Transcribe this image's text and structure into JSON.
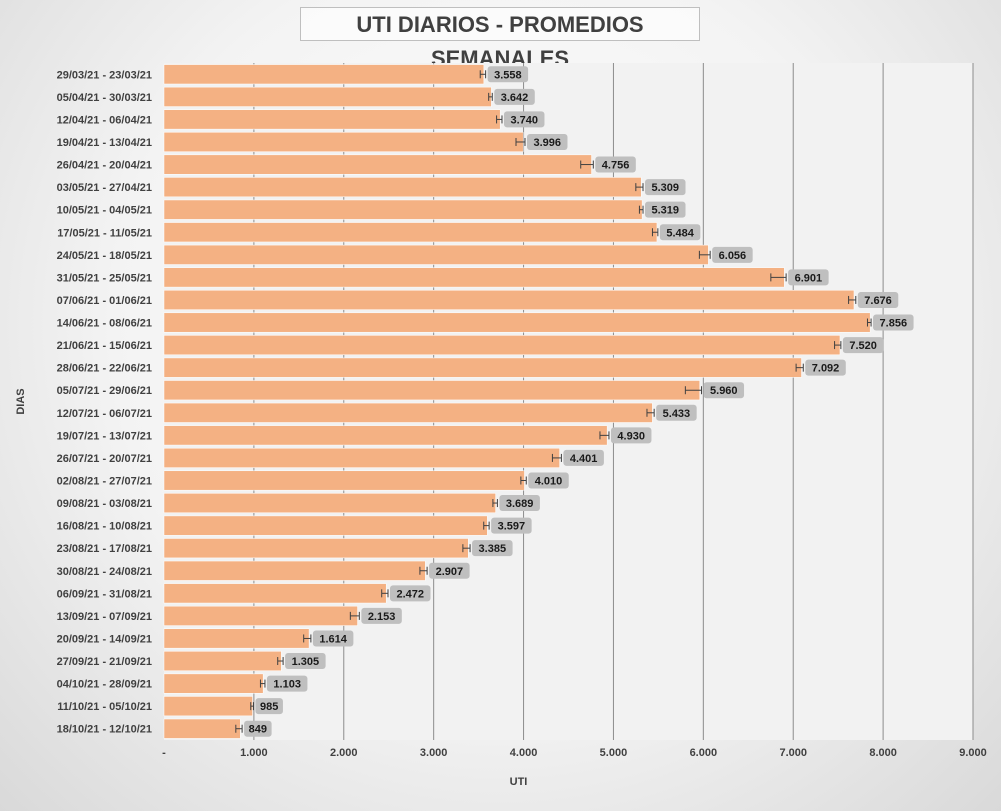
{
  "colors": {
    "bar": "#F4B183",
    "bar_stroke": "#ffffff",
    "plot_bg": "#F2F2F2",
    "gridline": "#8c8c8c",
    "label_bg": "#BFBFBF",
    "error_bar": "#404040"
  },
  "chart_data": {
    "type": "bar",
    "orientation": "horizontal",
    "title": "UTI DIARIOS - PROMEDIOS SEMANALES",
    "xlabel": "UTI",
    "ylabel": "DIAS",
    "xlim": [
      0,
      9000
    ],
    "grid": true,
    "legend": "none",
    "error_bars": true,
    "x_tick_labels": [
      "-",
      "1.000",
      "2.000",
      "3.000",
      "4.000",
      "5.000",
      "6.000",
      "7.000",
      "8.000",
      "9.000"
    ],
    "categories": [
      "29/03/21 - 23/03/21",
      "05/04/21 - 30/03/21",
      "12/04/21 - 06/04/21",
      "19/04/21 - 13/04/21",
      "26/04/21 - 20/04/21",
      "03/05/21 - 27/04/21",
      "10/05/21 - 04/05/21",
      "17/05/21 - 11/05/21",
      "24/05/21 - 18/05/21",
      "31/05/21 - 25/05/21",
      "07/06/21 - 01/06/21",
      "14/06/21 - 08/06/21",
      "21/06/21 - 15/06/21",
      "28/06/21 - 22/06/21",
      "05/07/21 - 29/06/21",
      "12/07/21 - 06/07/21",
      "19/07/21 - 13/07/21",
      "26/07/21 - 20/07/21",
      "02/08/21 - 27/07/21",
      "09/08/21 - 03/08/21",
      "16/08/21 - 10/08/21",
      "23/08/21 - 17/08/21",
      "30/08/21 - 24/08/21",
      "06/09/21 - 31/08/21",
      "13/09/21 - 07/09/21",
      "20/09/21 - 14/09/21",
      "27/09/21 - 21/09/21",
      "04/10/21 - 28/09/21",
      "11/10/21 - 05/10/21",
      "18/10/21 - 12/10/21"
    ],
    "values": [
      3558,
      3642,
      3740,
      3996,
      4756,
      5309,
      5319,
      5484,
      6056,
      6901,
      7676,
      7856,
      7520,
      7092,
      5960,
      5433,
      4930,
      4401,
      4010,
      3689,
      3597,
      3385,
      2907,
      2472,
      2153,
      1614,
      1305,
      1103,
      985,
      849
    ],
    "value_labels": [
      "3.558",
      "3.642",
      "3.740",
      "3.996",
      "4.756",
      "5.309",
      "5.319",
      "5.484",
      "6.056",
      "6.901",
      "7.676",
      "7.856",
      "7.520",
      "7.092",
      "5.960",
      "5.433",
      "4.930",
      "4.401",
      "4.010",
      "3.689",
      "3.597",
      "3.385",
      "2.907",
      "2.472",
      "2.153",
      "1.614",
      "1.305",
      "1.103",
      "985",
      "849"
    ],
    "error_minus": [
      40,
      30,
      40,
      80,
      120,
      60,
      30,
      50,
      100,
      150,
      60,
      30,
      60,
      60,
      160,
      60,
      80,
      80,
      40,
      30,
      40,
      60,
      60,
      50,
      80,
      60,
      40,
      30,
      20,
      50
    ],
    "error_plus": [
      20,
      10,
      20,
      20,
      20,
      20,
      10,
      10,
      20,
      20,
      20,
      10,
      10,
      20,
      20,
      20,
      20,
      20,
      20,
      20,
      20,
      20,
      20,
      20,
      20,
      20,
      20,
      20,
      10,
      20
    ]
  }
}
